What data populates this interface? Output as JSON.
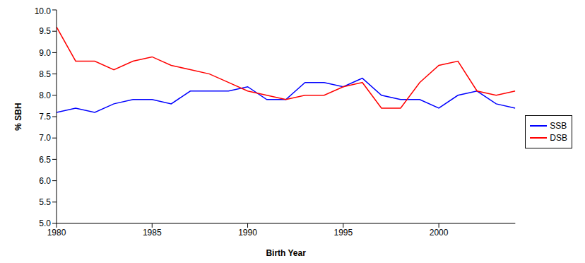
{
  "chart_data": {
    "type": "line",
    "x_label": "Birth Year",
    "y_label": "% SBH",
    "x": [
      1980,
      1981,
      1982,
      1983,
      1984,
      1985,
      1986,
      1987,
      1988,
      1989,
      1990,
      1991,
      1992,
      1993,
      1994,
      1995,
      1996,
      1997,
      1998,
      1999,
      2000,
      2001,
      2002,
      2003,
      2004
    ],
    "series": [
      {
        "name": "SSB",
        "color": "#0000ff",
        "values": [
          7.6,
          7.7,
          7.6,
          7.8,
          7.9,
          7.9,
          7.8,
          8.1,
          8.1,
          8.1,
          8.2,
          7.9,
          7.9,
          8.3,
          8.3,
          8.2,
          8.4,
          8.0,
          7.9,
          7.9,
          7.7,
          8.0,
          8.1,
          7.8,
          7.7
        ]
      },
      {
        "name": "DSB",
        "color": "#ff0000",
        "values": [
          9.6,
          8.8,
          8.8,
          8.6,
          8.8,
          8.9,
          8.7,
          8.6,
          8.5,
          8.3,
          8.1,
          8.0,
          7.9,
          8.0,
          8.0,
          8.2,
          8.3,
          7.7,
          7.7,
          8.3,
          8.7,
          8.8,
          8.1,
          8.0,
          8.1
        ]
      }
    ],
    "xlim": [
      1980,
      2004
    ],
    "xticks": [
      1980,
      1985,
      1990,
      1995,
      2000
    ],
    "ylim": [
      5,
      10
    ],
    "yticks": [
      {
        "value": 5,
        "label": "5.0"
      },
      {
        "value": 5.5,
        "label": "5.5"
      },
      {
        "value": 6,
        "label": "6.0"
      },
      {
        "value": 6.5,
        "label": "6.5"
      },
      {
        "value": 7,
        "label": "7.0"
      },
      {
        "value": 7.5,
        "label": "7.5"
      },
      {
        "value": 8,
        "label": "8.0"
      },
      {
        "value": 8.5,
        "label": "8.5"
      },
      {
        "value": 9,
        "label": "9.0"
      },
      {
        "value": 9.5,
        "label": "9.5"
      },
      {
        "value": 10,
        "label": "10.0"
      }
    ],
    "grid": false,
    "legend": "right"
  }
}
